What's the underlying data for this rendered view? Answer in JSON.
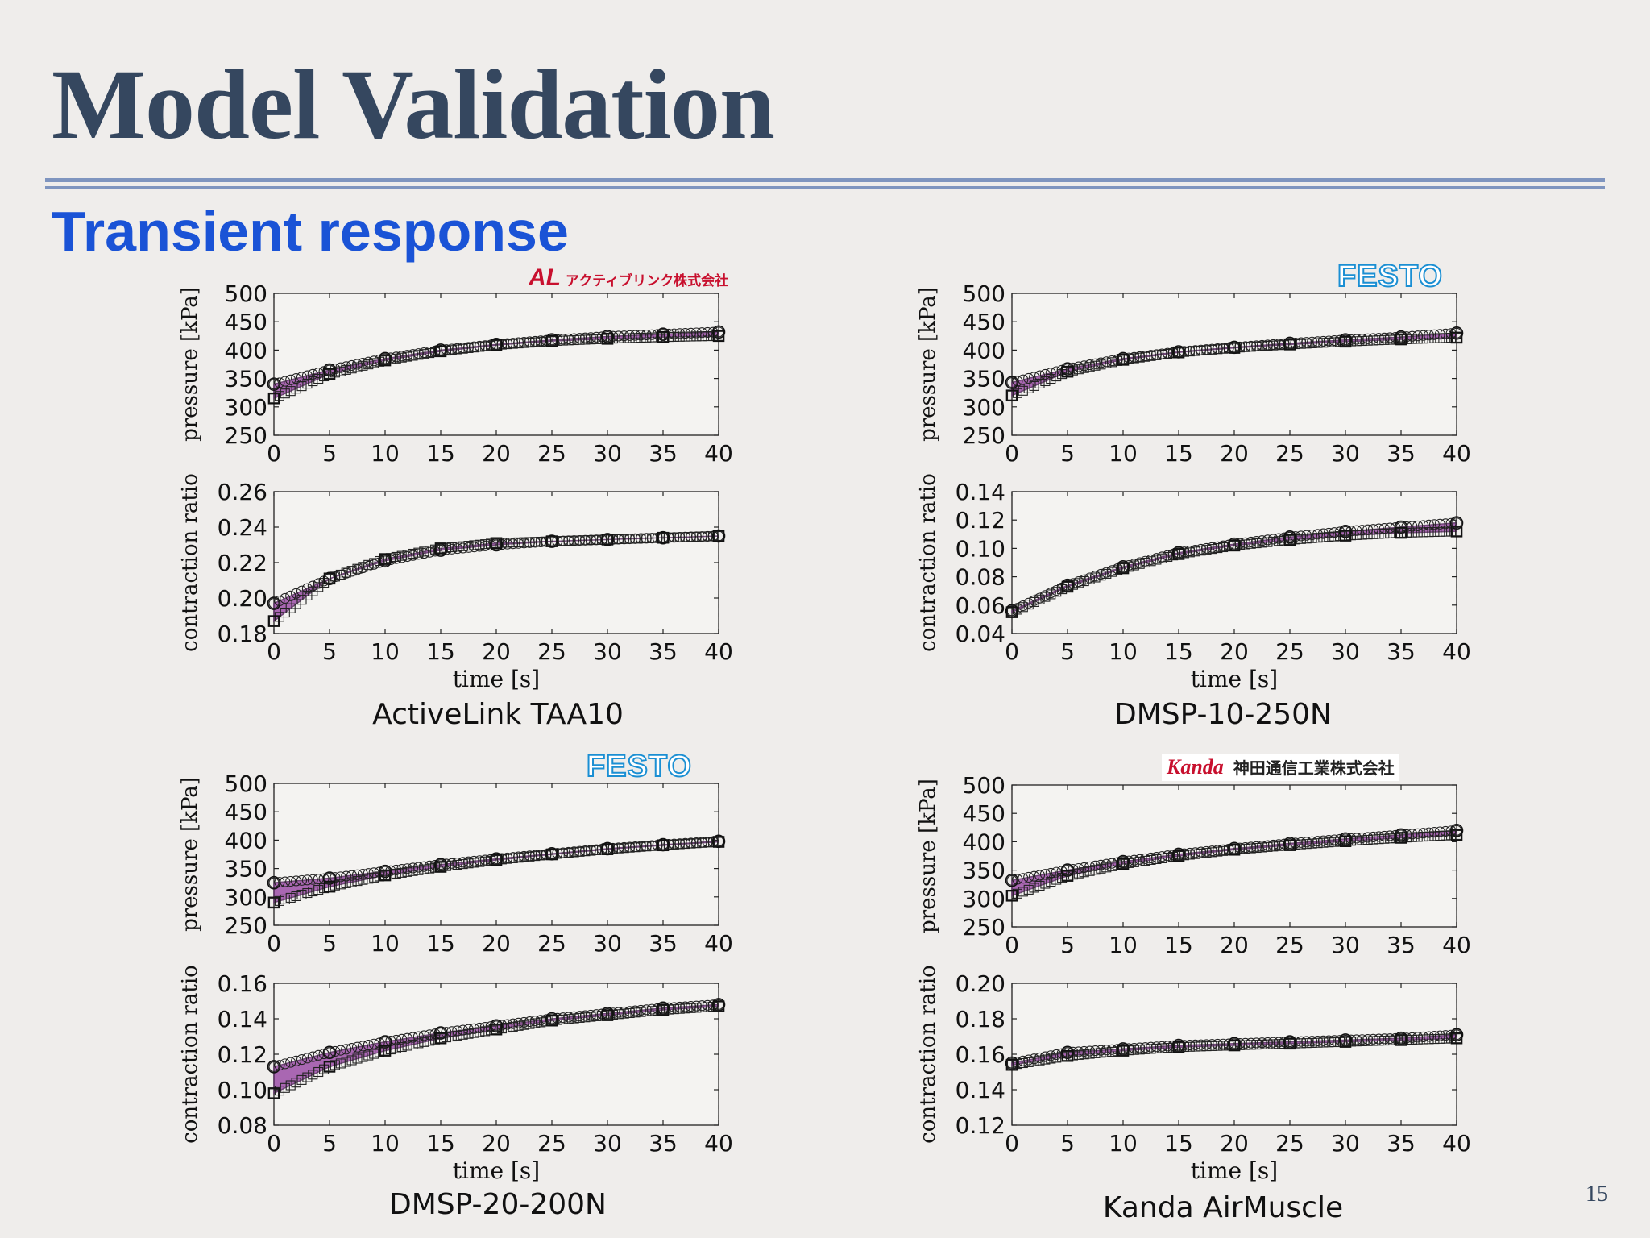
{
  "slide": {
    "title": "Model Validation",
    "subtitle": "Transient response",
    "page_number": "15"
  },
  "logos": {
    "activelink": {
      "mark": "AL",
      "text": "アクティブリンク株式会社"
    },
    "festo_1": "FESTO",
    "festo_2": "FESTO",
    "kanda": {
      "mark": "Kanda",
      "text": "神田通信工業株式会社"
    }
  },
  "chart_data": [
    {
      "panel": "ActiveLink TAA10",
      "label": "ActiveLink TAA10",
      "subplots": [
        {
          "type": "line",
          "ylabel": "pressure [kPa]",
          "xlabel": "",
          "xlim": [
            0,
            40
          ],
          "ylim": [
            250,
            500
          ],
          "xticks": [
            0,
            5,
            10,
            15,
            20,
            25,
            30,
            35,
            40
          ],
          "yticks": [
            250,
            300,
            350,
            400,
            450,
            500
          ],
          "ytick_labels": [
            "250",
            "300",
            "350",
            "400",
            "450",
            "500"
          ],
          "series": [
            {
              "name": "upper",
              "marker": "circle",
              "x": [
                0,
                5,
                10,
                15,
                20,
                25,
                30,
                35,
                40
              ],
              "values": [
                340,
                365,
                385,
                400,
                410,
                418,
                424,
                428,
                432
              ]
            },
            {
              "name": "lower",
              "marker": "square",
              "x": [
                0,
                5,
                10,
                15,
                20,
                25,
                30,
                35,
                40
              ],
              "values": [
                315,
                358,
                382,
                398,
                409,
                416,
                420,
                423,
                425
              ]
            }
          ]
        },
        {
          "type": "line",
          "ylabel": "contraction ratio",
          "xlabel": "time [s]",
          "xlim": [
            0,
            40
          ],
          "ylim": [
            0.18,
            0.26
          ],
          "xticks": [
            0,
            5,
            10,
            15,
            20,
            25,
            30,
            35,
            40
          ],
          "yticks": [
            0.18,
            0.2,
            0.22,
            0.24,
            0.26
          ],
          "ytick_labels": [
            "0.18",
            "0.20",
            "0.22",
            "0.24",
            "0.26"
          ],
          "series": [
            {
              "name": "upper",
              "marker": "circle",
              "x": [
                0,
                5,
                10,
                15,
                20,
                25,
                30,
                35,
                40
              ],
              "values": [
                0.197,
                0.211,
                0.221,
                0.227,
                0.23,
                0.232,
                0.233,
                0.234,
                0.235
              ]
            },
            {
              "name": "lower",
              "marker": "square",
              "x": [
                0,
                5,
                10,
                15,
                20,
                25,
                30,
                35,
                40
              ],
              "values": [
                0.187,
                0.211,
                0.222,
                0.228,
                0.231,
                0.232,
                0.233,
                0.234,
                0.235
              ]
            }
          ]
        }
      ]
    },
    {
      "panel": "DMSP-10-250N",
      "label": "DMSP-10-250N",
      "subplots": [
        {
          "type": "line",
          "ylabel": "pressure [kPa]",
          "xlabel": "",
          "xlim": [
            0,
            40
          ],
          "ylim": [
            250,
            500
          ],
          "xticks": [
            0,
            5,
            10,
            15,
            20,
            25,
            30,
            35,
            40
          ],
          "yticks": [
            250,
            300,
            350,
            400,
            450,
            500
          ],
          "ytick_labels": [
            "250",
            "300",
            "350",
            "400",
            "450",
            "500"
          ],
          "series": [
            {
              "name": "upper",
              "marker": "circle",
              "x": [
                0,
                5,
                10,
                15,
                20,
                25,
                30,
                35,
                40
              ],
              "values": [
                343,
                367,
                385,
                397,
                405,
                412,
                418,
                423,
                430
              ]
            },
            {
              "name": "lower",
              "marker": "square",
              "x": [
                0,
                5,
                10,
                15,
                20,
                25,
                30,
                35,
                40
              ],
              "values": [
                320,
                362,
                383,
                396,
                404,
                410,
                415,
                419,
                422
              ]
            }
          ]
        },
        {
          "type": "line",
          "ylabel": "contraction ratio",
          "xlabel": "time [s]",
          "xlim": [
            0,
            40
          ],
          "ylim": [
            0.04,
            0.14
          ],
          "xticks": [
            0,
            5,
            10,
            15,
            20,
            25,
            30,
            35,
            40
          ],
          "yticks": [
            0.04,
            0.06,
            0.08,
            0.1,
            0.12,
            0.14
          ],
          "ytick_labels": [
            "0.04",
            "0.06",
            "0.08",
            "0.10",
            "0.12",
            "0.14"
          ],
          "series": [
            {
              "name": "upper",
              "marker": "circle",
              "x": [
                0,
                5,
                10,
                15,
                20,
                25,
                30,
                35,
                40
              ],
              "values": [
                0.056,
                0.074,
                0.087,
                0.097,
                0.103,
                0.108,
                0.112,
                0.115,
                0.118
              ]
            },
            {
              "name": "lower",
              "marker": "square",
              "x": [
                0,
                5,
                10,
                15,
                20,
                25,
                30,
                35,
                40
              ],
              "values": [
                0.055,
                0.073,
                0.086,
                0.096,
                0.102,
                0.106,
                0.109,
                0.111,
                0.112
              ]
            }
          ]
        }
      ]
    },
    {
      "panel": "DMSP-20-200N",
      "label": "DMSP-20-200N",
      "subplots": [
        {
          "type": "line",
          "ylabel": "pressure [kPa]",
          "xlabel": "",
          "xlim": [
            0,
            40
          ],
          "ylim": [
            250,
            500
          ],
          "xticks": [
            0,
            5,
            10,
            15,
            20,
            25,
            30,
            35,
            40
          ],
          "yticks": [
            250,
            300,
            350,
            400,
            450,
            500
          ],
          "ytick_labels": [
            "250",
            "300",
            "350",
            "400",
            "450",
            "500"
          ],
          "series": [
            {
              "name": "upper",
              "marker": "circle",
              "x": [
                0,
                5,
                10,
                15,
                20,
                25,
                30,
                35,
                40
              ],
              "values": [
                325,
                333,
                345,
                357,
                367,
                376,
                385,
                392,
                398
              ]
            },
            {
              "name": "lower",
              "marker": "square",
              "x": [
                0,
                5,
                10,
                15,
                20,
                25,
                30,
                35,
                40
              ],
              "values": [
                290,
                318,
                338,
                353,
                365,
                375,
                384,
                391,
                397
              ]
            }
          ]
        },
        {
          "type": "line",
          "ylabel": "contraction ratio",
          "xlabel": "time [s]",
          "xlim": [
            0,
            40
          ],
          "ylim": [
            0.08,
            0.16
          ],
          "xticks": [
            0,
            5,
            10,
            15,
            20,
            25,
            30,
            35,
            40
          ],
          "yticks": [
            0.08,
            0.1,
            0.12,
            0.14,
            0.16
          ],
          "ytick_labels": [
            "0.08",
            "0.10",
            "0.12",
            "0.14",
            "0.16"
          ],
          "series": [
            {
              "name": "upper",
              "marker": "circle",
              "x": [
                0,
                5,
                10,
                15,
                20,
                25,
                30,
                35,
                40
              ],
              "values": [
                0.113,
                0.121,
                0.127,
                0.132,
                0.136,
                0.14,
                0.143,
                0.146,
                0.148
              ]
            },
            {
              "name": "lower",
              "marker": "square",
              "x": [
                0,
                5,
                10,
                15,
                20,
                25,
                30,
                35,
                40
              ],
              "values": [
                0.098,
                0.113,
                0.122,
                0.129,
                0.134,
                0.139,
                0.142,
                0.145,
                0.147
              ]
            }
          ]
        }
      ]
    },
    {
      "panel": "Kanda AirMuscle",
      "label": "Kanda AirMuscle",
      "subplots": [
        {
          "type": "line",
          "ylabel": "pressure [kPa]",
          "xlabel": "",
          "xlim": [
            0,
            40
          ],
          "ylim": [
            250,
            500
          ],
          "xticks": [
            0,
            5,
            10,
            15,
            20,
            25,
            30,
            35,
            40
          ],
          "yticks": [
            250,
            300,
            350,
            400,
            450,
            500
          ],
          "ytick_labels": [
            "250",
            "300",
            "350",
            "400",
            "450",
            "500"
          ],
          "series": [
            {
              "name": "upper",
              "marker": "circle",
              "x": [
                0,
                5,
                10,
                15,
                20,
                25,
                30,
                35,
                40
              ],
              "values": [
                332,
                350,
                365,
                378,
                388,
                397,
                405,
                412,
                420
              ]
            },
            {
              "name": "lower",
              "marker": "square",
              "x": [
                0,
                5,
                10,
                15,
                20,
                25,
                30,
                35,
                40
              ],
              "values": [
                305,
                340,
                361,
                375,
                386,
                394,
                401,
                407,
                412
              ]
            }
          ]
        },
        {
          "type": "line",
          "ylabel": "contraction ratio",
          "xlabel": "time [s]",
          "xlim": [
            0,
            40
          ],
          "ylim": [
            0.12,
            0.2
          ],
          "xticks": [
            0,
            5,
            10,
            15,
            20,
            25,
            30,
            35,
            40
          ],
          "yticks": [
            0.12,
            0.14,
            0.16,
            0.18,
            0.2
          ],
          "ytick_labels": [
            "0.12",
            "0.14",
            "0.16",
            "0.18",
            "0.20"
          ],
          "series": [
            {
              "name": "upper",
              "marker": "circle",
              "x": [
                0,
                5,
                10,
                15,
                20,
                25,
                30,
                35,
                40
              ],
              "values": [
                0.155,
                0.161,
                0.163,
                0.165,
                0.166,
                0.167,
                0.168,
                0.169,
                0.171
              ]
            },
            {
              "name": "lower",
              "marker": "square",
              "x": [
                0,
                5,
                10,
                15,
                20,
                25,
                30,
                35,
                40
              ],
              "values": [
                0.154,
                0.159,
                0.162,
                0.164,
                0.165,
                0.166,
                0.167,
                0.168,
                0.169
              ]
            }
          ]
        }
      ]
    }
  ]
}
